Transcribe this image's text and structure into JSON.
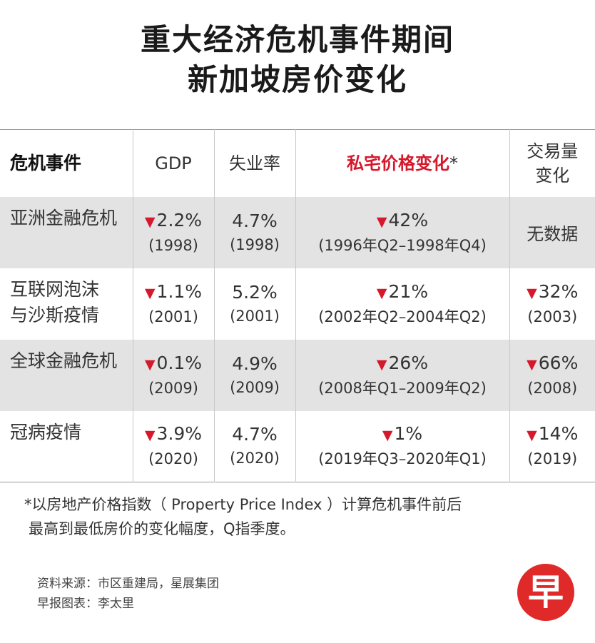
{
  "title": {
    "line1": "重大经济危机事件期间",
    "line2": "新加坡房价变化"
  },
  "headers": {
    "event": "危机事件",
    "gdp": "GDP",
    "unemployment": "失业率",
    "price_change": "私宅价格变化",
    "price_star": "*",
    "volume_line1": "交易量",
    "volume_line2": "变化"
  },
  "colors": {
    "accent_red": "#d6182c",
    "row_shade": "#e3e3e3"
  },
  "rows": [
    {
      "event_line1": "亚洲金融危机",
      "event_line2": "",
      "gdp": "2.2%",
      "gdp_year": "(1998)",
      "unemployment": "4.7%",
      "unemployment_year": "(1998)",
      "price": "42%",
      "price_period": "(1996年Q2–1998年Q4)",
      "volume": "无数据",
      "volume_year": ""
    },
    {
      "event_line1": "互联网泡沫",
      "event_line2": "与沙斯疫情",
      "gdp": "1.1%",
      "gdp_year": "(2001)",
      "unemployment": "5.2%",
      "unemployment_year": "(2001)",
      "price": "21%",
      "price_period": "(2002年Q2–2004年Q2)",
      "volume": "32%",
      "volume_year": "(2003)"
    },
    {
      "event_line1": "全球金融危机",
      "event_line2": "",
      "gdp": "0.1%",
      "gdp_year": "(2009)",
      "unemployment": "4.9%",
      "unemployment_year": "(2009)",
      "price": "26%",
      "price_period": "(2008年Q1–2009年Q2)",
      "volume": "66%",
      "volume_year": "(2008)"
    },
    {
      "event_line1": "冠病疫情",
      "event_line2": "",
      "gdp": "3.9%",
      "gdp_year": "(2020)",
      "unemployment": "4.7%",
      "unemployment_year": "(2020)",
      "price": "1%",
      "price_period": "(2019年Q3–2020年Q1)",
      "volume": "14%",
      "volume_year": "(2019)"
    }
  ],
  "down_arrow": "▼",
  "footnote": {
    "line1": "*以房地产价格指数（ Property Price Index ）计算危机事件前后",
    "line2": "最高到最低房价的变化幅度，Q指季度。"
  },
  "source": {
    "line1": "资料来源：市区重建局，星展集团",
    "line2": "早报图表：李太里"
  },
  "logo_text": "早",
  "chart_data": {
    "type": "table",
    "title": "重大经济危机事件期间新加坡房价变化",
    "columns": [
      "危机事件",
      "GDP",
      "失业率",
      "私宅价格变化*",
      "交易量变化"
    ],
    "rows": [
      [
        "亚洲金融危机",
        "▼2.2% (1998)",
        "4.7% (1998)",
        "▼42% (1996年Q2–1998年Q4)",
        "无数据"
      ],
      [
        "互联网泡沫与沙斯疫情",
        "▼1.1% (2001)",
        "5.2% (2001)",
        "▼21% (2002年Q2–2004年Q2)",
        "▼32% (2003)"
      ],
      [
        "全球金融危机",
        "▼0.1% (2009)",
        "4.9% (2009)",
        "▼26% (2008年Q1–2009年Q2)",
        "▼66% (2008)"
      ],
      [
        "冠病疫情",
        "▼3.9% (2020)",
        "4.7% (2020)",
        "▼1% (2019年Q3–2020年Q1)",
        "▼14% (2019)"
      ]
    ]
  }
}
